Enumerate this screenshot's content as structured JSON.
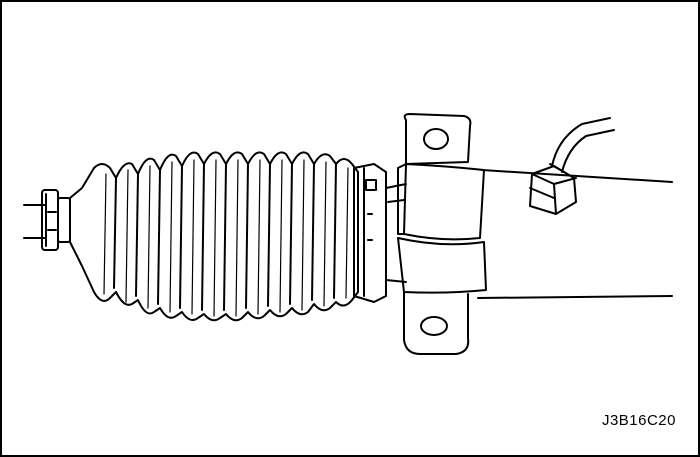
{
  "figure": {
    "code": "J3B16C20"
  },
  "colors": {
    "line": "#000000",
    "background": "#ffffff"
  }
}
